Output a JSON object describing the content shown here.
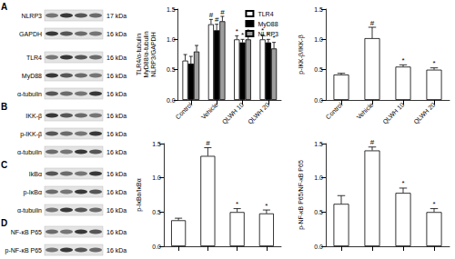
{
  "blots": {
    "panels": [
      {
        "label": "A",
        "groups": [
          [
            {
              "protein": "NLRP3",
              "size": "17 kDa"
            },
            {
              "protein": "GAPDH",
              "size": "16 kDa"
            }
          ],
          [
            {
              "protein": "TLR4",
              "size": "16 kDa"
            },
            {
              "protein": "MyD88",
              "size": "16 kDa"
            },
            {
              "protein": "α-tubulin",
              "size": "16 kDa"
            }
          ]
        ]
      },
      {
        "label": "B",
        "groups": [
          [
            {
              "protein": "IKK-β",
              "size": "16 kDa"
            },
            {
              "protein": "p-IKK-β",
              "size": "16 kDa"
            },
            {
              "protein": "α-tubulin",
              "size": "16 kDa"
            }
          ]
        ]
      },
      {
        "label": "C",
        "groups": [
          [
            {
              "protein": "IkBα",
              "size": "16 kDa"
            },
            {
              "protein": "p-IκBα",
              "size": "16 kDa"
            },
            {
              "protein": "α-tubulin",
              "size": "16 kDa"
            }
          ]
        ]
      },
      {
        "label": "D",
        "groups": [
          [
            {
              "protein": "NF-κB P65",
              "size": "16 kDa"
            },
            {
              "protein": "p-NF-κB P65",
              "size": "16 kDa"
            }
          ]
        ]
      }
    ]
  },
  "chart_data": [
    {
      "type": "bar",
      "ylabel": [
        "TLR4/α-tubulin",
        "MyD88/α-tubulin",
        "NLRP3/GAPDH"
      ],
      "categories": [
        "Control",
        "Vehicle",
        "QLWH 10",
        "QLWH 20"
      ],
      "series": [
        {
          "name": "TLR4",
          "color": "#ffffff",
          "values": [
            0.65,
            1.25,
            1.0,
            1.0
          ],
          "errors": [
            0.1,
            0.08,
            0.06,
            0.07
          ],
          "annotations": [
            null,
            "#",
            "*",
            "*"
          ]
        },
        {
          "name": "MyD88",
          "color": "#000000",
          "values": [
            0.6,
            1.15,
            0.95,
            0.95
          ],
          "errors": [
            0.12,
            0.1,
            0.05,
            0.05
          ],
          "annotations": [
            null,
            "#",
            "*",
            "*"
          ]
        },
        {
          "name": "NLRP3",
          "color": "#9e9e9e",
          "values": [
            0.8,
            1.3,
            1.0,
            0.85
          ],
          "errors": [
            0.1,
            0.08,
            0.06,
            0.1
          ],
          "annotations": [
            null,
            "#",
            "*",
            "*"
          ]
        }
      ],
      "ylim": [
        0,
        1.5
      ],
      "yticks": [
        {
          "value": 0,
          "label": "0.0"
        },
        {
          "value": 0.5,
          "label": "0.5"
        },
        {
          "value": 1,
          "label": "1.0"
        },
        {
          "value": 1.5,
          "label": "1.5"
        }
      ],
      "legend": "upper right"
    },
    {
      "type": "bar",
      "ylabel": [
        "p-IKK-β/IKK-β"
      ],
      "categories": [
        "Control",
        "Vehicle",
        "QLWH 10",
        "QLWH 20"
      ],
      "series": [
        {
          "color": "#ffffff",
          "values": [
            0.42,
            1.02,
            0.55,
            0.5
          ],
          "errors": [
            0.02,
            0.18,
            0.03,
            0.03
          ],
          "annotations": [
            null,
            "#",
            "*",
            "*"
          ]
        }
      ],
      "ylim": [
        0,
        1.5
      ],
      "yticks": [
        {
          "value": 0,
          "label": "0.0"
        },
        {
          "value": 0.5,
          "label": "0.5"
        },
        {
          "value": 1,
          "label": "1.0"
        },
        {
          "value": 1.5,
          "label": "1.5"
        }
      ]
    },
    {
      "type": "bar",
      "ylabel": [
        "p-IκBα/IκBα"
      ],
      "categories": [
        null,
        null,
        null,
        null
      ],
      "series": [
        {
          "color": "#ffffff",
          "values": [
            0.38,
            1.32,
            0.5,
            0.48
          ],
          "errors": [
            0.03,
            0.12,
            0.05,
            0.05
          ],
          "annotations": [
            null,
            "#",
            "*",
            "*"
          ]
        }
      ],
      "ylim": [
        0,
        1.5
      ],
      "yticks": [
        {
          "value": 0,
          "label": "0.0"
        },
        {
          "value": 0.5,
          "label": "0.5"
        },
        {
          "value": 1,
          "label": "1.0"
        },
        {
          "value": 1.5,
          "label": "1.5"
        }
      ],
      "tick_labels": "y"
    },
    {
      "type": "bar",
      "ylabel": [
        "p-NF-κB P65/NF-κB P65"
      ],
      "categories": [
        null,
        null,
        null,
        null
      ],
      "series": [
        {
          "color": "#ffffff",
          "values": [
            0.62,
            1.4,
            0.78,
            0.5
          ],
          "errors": [
            0.12,
            0.05,
            0.07,
            0.05
          ],
          "annotations": [
            null,
            "#",
            "*",
            "*"
          ]
        }
      ],
      "ylim": [
        0,
        1.5
      ],
      "yticks": [
        {
          "value": 0,
          "label": "0.0"
        },
        {
          "value": 0.5,
          "label": "0.5"
        },
        {
          "value": 1,
          "label": "1.0"
        },
        {
          "value": 1.5,
          "label": "1.5"
        }
      ],
      "tick_labels": "y"
    }
  ]
}
